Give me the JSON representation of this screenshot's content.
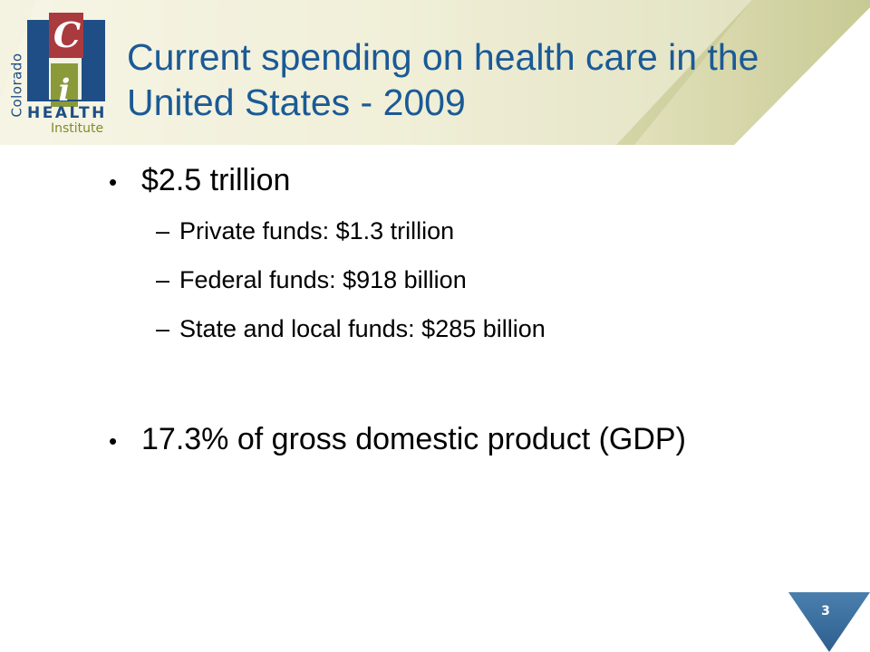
{
  "logo": {
    "vertical_text": "Colorado",
    "letter_top": "C",
    "letter_bottom": "i",
    "health_text": "HEALTH",
    "institute_text": "Institute"
  },
  "slide": {
    "title_line1": "Current spending on health care in the",
    "title_line2": "United States - 2009",
    "bullets": [
      {
        "text": "$2.5 trillion",
        "sub": [
          "Private funds: $1.3 trillion",
          "Federal funds: $918 billion",
          "State and local funds: $285 billion"
        ]
      },
      {
        "text": "17.3% of gross domestic product (GDP)"
      }
    ],
    "bullet_symbol": "•",
    "sub_symbol": "–",
    "page_number": "3"
  },
  "colors": {
    "title": "#1a5a96",
    "logo_blue": "#1e4e85",
    "logo_red": "#a93a3e",
    "logo_green": "#8a9a3a",
    "header_gradient_start": "#f2f1dc",
    "header_gradient_end": "#c3c58e",
    "page_marker": "#3b6f9e"
  }
}
